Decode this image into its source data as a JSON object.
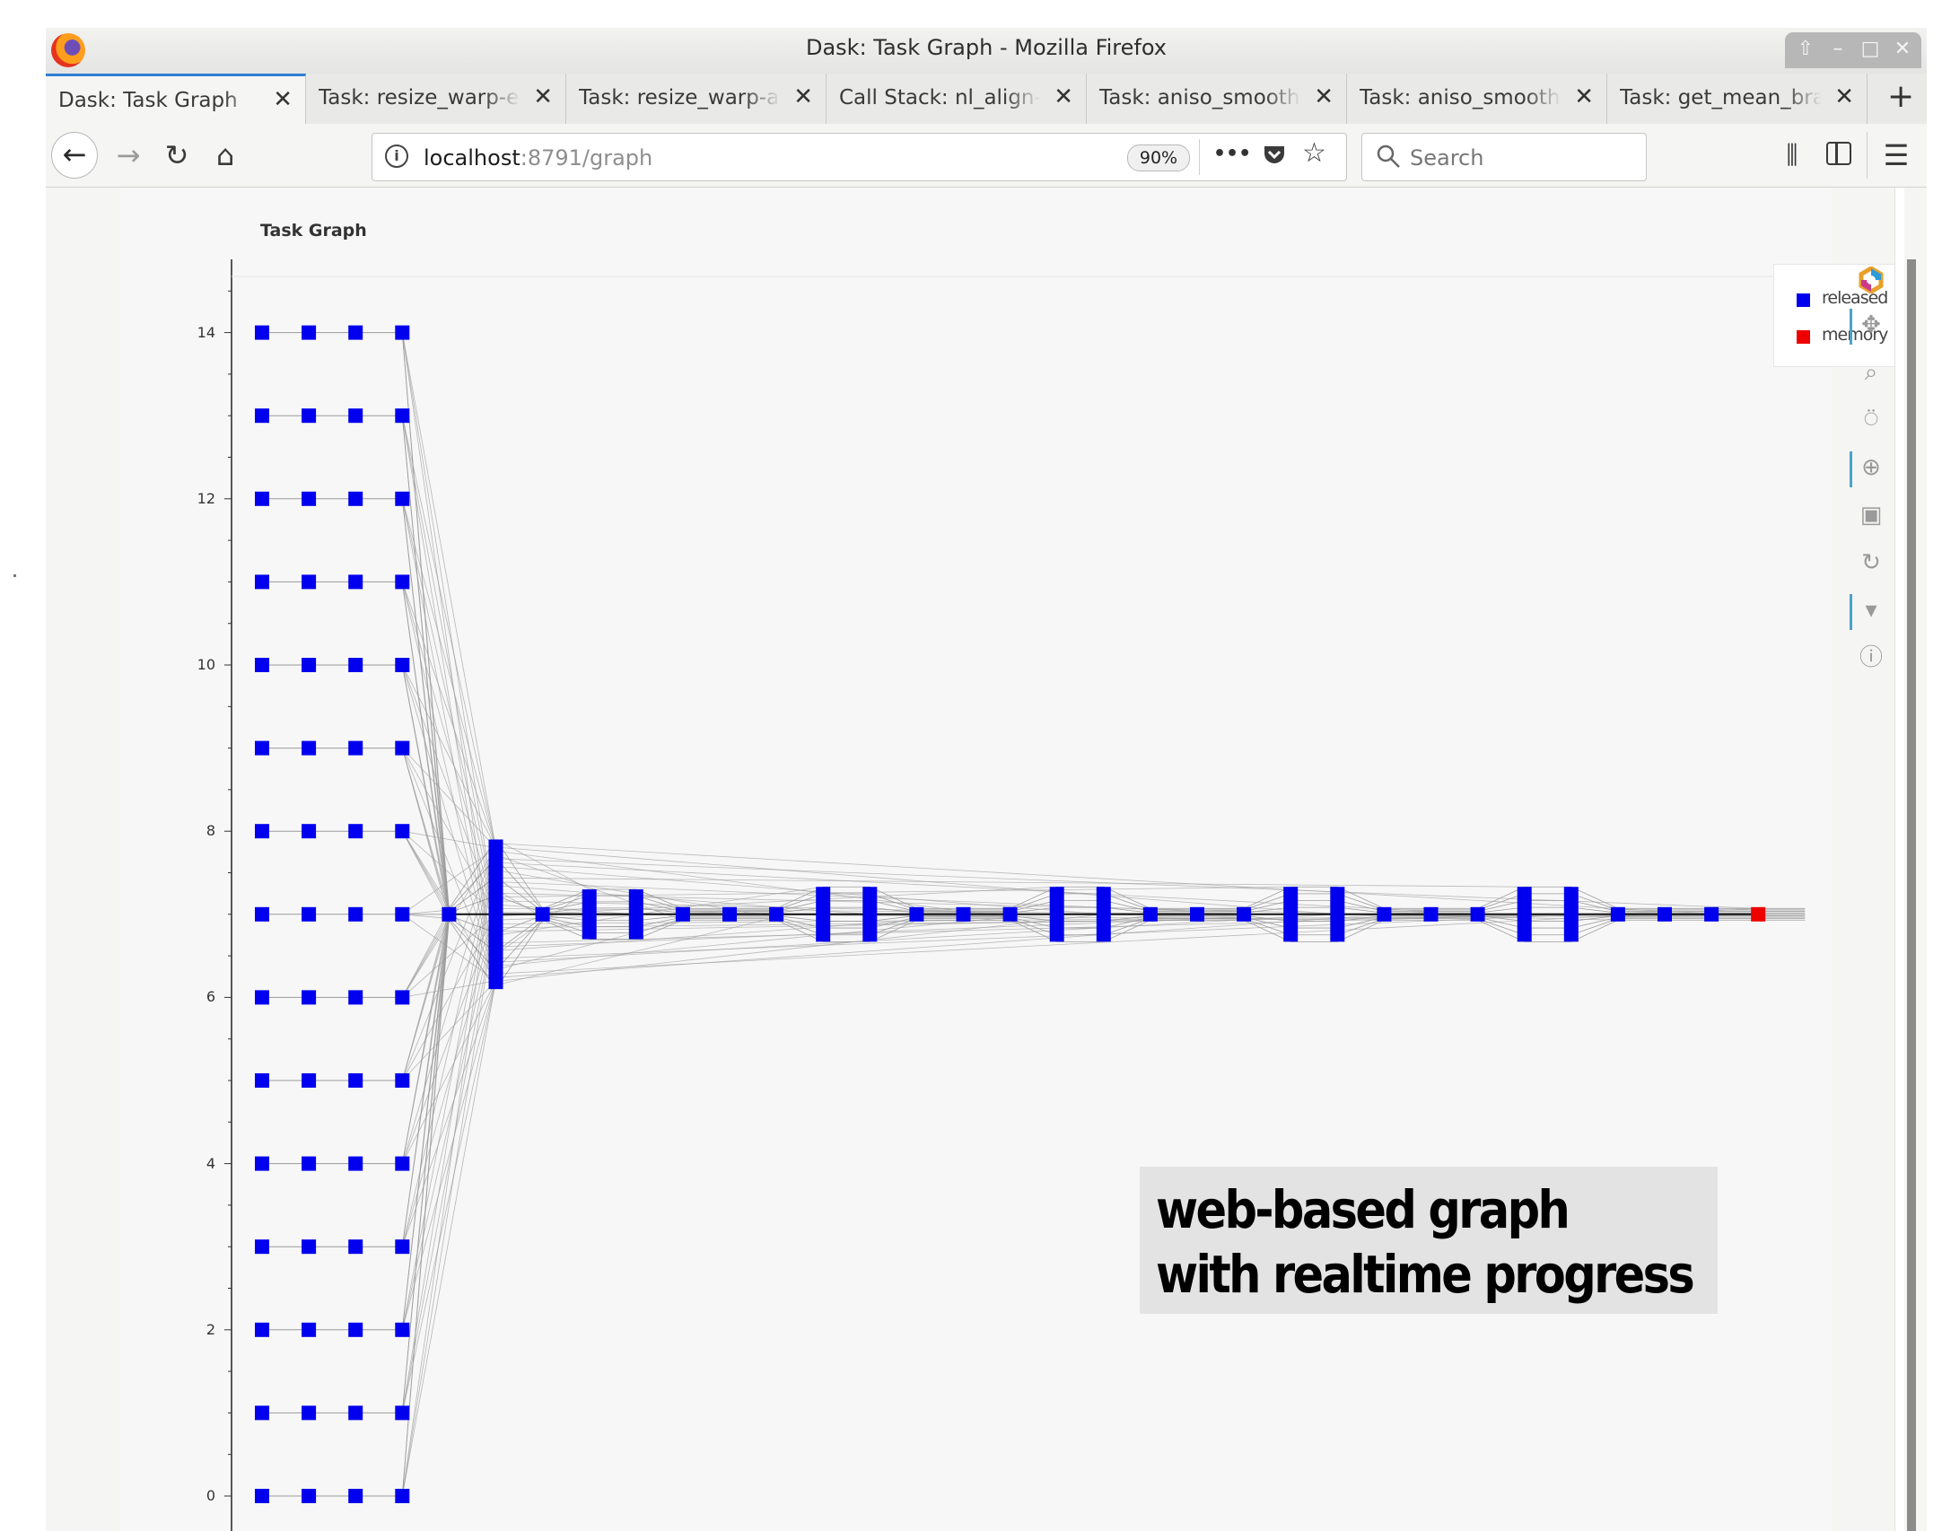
{
  "window": {
    "title": "Dask: Task Graph - Mozilla Firefox",
    "wm_buttons": [
      "⇧",
      "–",
      "□",
      "✕"
    ]
  },
  "tabs": [
    {
      "label": "Dask: Task Graph",
      "active": true
    },
    {
      "label": "Task: resize_warp-eb",
      "active": false
    },
    {
      "label": "Task: resize_warp-ad",
      "active": false
    },
    {
      "label": "Call Stack: nl_align-c",
      "active": false
    },
    {
      "label": "Task: aniso_smooth-",
      "active": false
    },
    {
      "label": "Task: aniso_smooth-",
      "active": false
    },
    {
      "label": "Task: get_mean_bra",
      "active": false
    }
  ],
  "tab_close_glyph": "✕",
  "new_tab_glyph": "+",
  "navbar": {
    "url_host": "localhost",
    "url_path": ":8791/graph",
    "zoom": "90%",
    "page_actions_glyph": "•••",
    "search_placeholder": "Search"
  },
  "page": {
    "plot_title": "Task Graph",
    "legend": [
      {
        "label": "released",
        "color": "#0000ee"
      },
      {
        "label": "memory",
        "color": "#ee0000"
      }
    ],
    "toolbar": [
      "bokeh-logo-icon",
      "pan-icon",
      "box-zoom-icon",
      "wheel-zoom-icon",
      "zoom-in-icon",
      "save-icon",
      "reset-icon",
      "hover-icon",
      "help-icon"
    ],
    "caption": [
      "web-based graph",
      "with realtime progress"
    ]
  },
  "chart_data": {
    "type": "scatter",
    "title": "Task Graph",
    "xlabel": "",
    "ylabel": "",
    "ylim": [
      -0.6,
      14.7
    ],
    "yticks": [
      0,
      2,
      4,
      6,
      8,
      10,
      12,
      14
    ],
    "grid": false,
    "legend_position": "top-right",
    "series": [
      {
        "name": "released",
        "color": "#0000ee",
        "points": {
          "columns_x": [
            0,
            1,
            2,
            3
          ],
          "rows_y": [
            0,
            1,
            2,
            3,
            4,
            5,
            6,
            7,
            8,
            9,
            10,
            11,
            12,
            13,
            14
          ],
          "chain_x": [
            4,
            5,
            6,
            7,
            8,
            9,
            10,
            11,
            12,
            13,
            14,
            15,
            16,
            17,
            18,
            19,
            20,
            21,
            22,
            23,
            24,
            25,
            26,
            27,
            28,
            29,
            30,
            31,
            32,
            33
          ],
          "chain_y": 7,
          "tall_nodes": [
            {
              "x": 5,
              "half_height": 0.9
            },
            {
              "x": 7,
              "half_height": 0.3
            },
            {
              "x": 8,
              "half_height": 0.3
            },
            {
              "x": 12,
              "half_height": 0.33
            },
            {
              "x": 13,
              "half_height": 0.33
            },
            {
              "x": 17,
              "half_height": 0.33
            },
            {
              "x": 18,
              "half_height": 0.33
            },
            {
              "x": 22,
              "half_height": 0.33
            },
            {
              "x": 23,
              "half_height": 0.33
            },
            {
              "x": 27,
              "half_height": 0.33
            },
            {
              "x": 28,
              "half_height": 0.33
            }
          ]
        }
      },
      {
        "name": "memory",
        "color": "#ee0000",
        "points": {
          "x": [
            32
          ],
          "y": [
            7
          ]
        }
      }
    ]
  }
}
